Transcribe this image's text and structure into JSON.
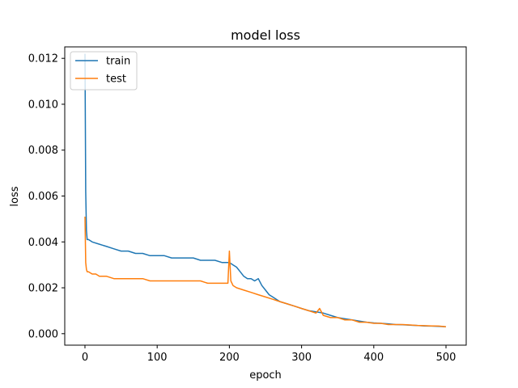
{
  "chart_data": {
    "type": "line",
    "title": "model loss",
    "xlabel": "epoch",
    "ylabel": "loss",
    "xlim": [
      -28,
      528
    ],
    "ylim": [
      -0.0005,
      0.0125
    ],
    "xticks": [
      0,
      100,
      200,
      300,
      400,
      500
    ],
    "xtick_labels": [
      "0",
      "100",
      "200",
      "300",
      "400",
      "500"
    ],
    "yticks": [
      0.0,
      0.002,
      0.004,
      0.006,
      0.008,
      0.01,
      0.012
    ],
    "ytick_labels": [
      "0.000",
      "0.002",
      "0.004",
      "0.006",
      "0.008",
      "0.010",
      "0.012"
    ],
    "grid": false,
    "legend_position": "upper left",
    "series": [
      {
        "name": "train",
        "color": "#1f77b4",
        "x": [
          0,
          1,
          2,
          3,
          5,
          10,
          20,
          30,
          40,
          50,
          60,
          70,
          80,
          90,
          100,
          110,
          120,
          130,
          140,
          150,
          160,
          170,
          180,
          190,
          200,
          205,
          210,
          215,
          220,
          225,
          230,
          235,
          240,
          245,
          250,
          255,
          260,
          270,
          280,
          290,
          300,
          310,
          320,
          330,
          340,
          350,
          360,
          370,
          380,
          390,
          400,
          410,
          420,
          430,
          440,
          450,
          460,
          470,
          480,
          490,
          500
        ],
        "values": [
          0.0122,
          0.0062,
          0.0045,
          0.0041,
          0.0041,
          0.004,
          0.0039,
          0.0038,
          0.0037,
          0.0036,
          0.0036,
          0.0035,
          0.0035,
          0.0034,
          0.0034,
          0.0034,
          0.0033,
          0.0033,
          0.0033,
          0.0033,
          0.0032,
          0.0032,
          0.0032,
          0.0031,
          0.0031,
          0.003,
          0.0029,
          0.0027,
          0.0025,
          0.0024,
          0.0024,
          0.0023,
          0.0024,
          0.0021,
          0.0019,
          0.0017,
          0.0016,
          0.0014,
          0.0013,
          0.0012,
          0.0011,
          0.001,
          0.00095,
          0.0009,
          0.0008,
          0.0007,
          0.00065,
          0.0006,
          0.00055,
          0.0005,
          0.00047,
          0.00045,
          0.00043,
          0.0004,
          0.00039,
          0.00037,
          0.00036,
          0.00034,
          0.00033,
          0.00032,
          0.0003
        ]
      },
      {
        "name": "test",
        "color": "#ff7f0e",
        "x": [
          0,
          1,
          2,
          3,
          5,
          10,
          15,
          20,
          30,
          40,
          50,
          60,
          70,
          80,
          90,
          100,
          110,
          120,
          130,
          140,
          150,
          160,
          170,
          180,
          190,
          198,
          200,
          202,
          205,
          210,
          220,
          230,
          240,
          250,
          260,
          270,
          280,
          290,
          300,
          310,
          320,
          325,
          330,
          340,
          350,
          360,
          370,
          380,
          390,
          400,
          410,
          420,
          430,
          440,
          450,
          460,
          470,
          480,
          490,
          500
        ],
        "values": [
          0.0051,
          0.0031,
          0.0028,
          0.0027,
          0.0027,
          0.0026,
          0.0026,
          0.0025,
          0.0025,
          0.0024,
          0.0024,
          0.0024,
          0.0024,
          0.0024,
          0.0023,
          0.0023,
          0.0023,
          0.0023,
          0.0023,
          0.0023,
          0.0023,
          0.0023,
          0.0022,
          0.0022,
          0.0022,
          0.0022,
          0.0036,
          0.0023,
          0.0021,
          0.002,
          0.0019,
          0.0018,
          0.0017,
          0.0016,
          0.0015,
          0.0014,
          0.0013,
          0.0012,
          0.0011,
          0.001,
          0.0009,
          0.0011,
          0.0008,
          0.0007,
          0.0007,
          0.0006,
          0.0006,
          0.0005,
          0.0005,
          0.00045,
          0.00045,
          0.0004,
          0.0004,
          0.0004,
          0.00038,
          0.00036,
          0.00035,
          0.00034,
          0.00033,
          0.0003
        ]
      }
    ]
  }
}
